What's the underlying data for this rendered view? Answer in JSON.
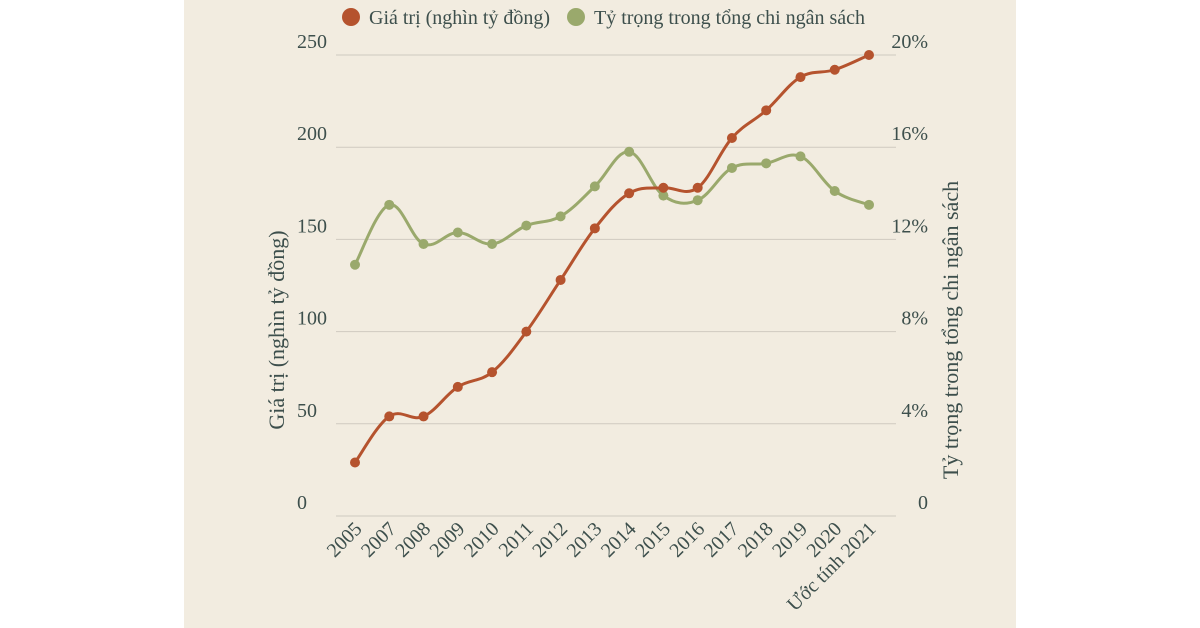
{
  "chart_data": {
    "type": "line",
    "categories": [
      "2005",
      "2007",
      "2008",
      "2009",
      "2010",
      "2011",
      "2012",
      "2013",
      "2014",
      "2015",
      "2016",
      "2017",
      "2018",
      "2019",
      "2020",
      "Ước tính 2021"
    ],
    "series": [
      {
        "name": "Giá trị (nghìn tỷ đồng)",
        "axis": "left",
        "color": "#b5532e",
        "values": [
          29,
          54,
          54,
          70,
          78,
          100,
          128,
          156,
          175,
          178,
          178,
          205,
          220,
          238,
          242,
          250
        ]
      },
      {
        "name": "Tỷ trọng trong tổng chi ngân sách",
        "axis": "right",
        "color": "#9aa96c",
        "values": [
          10.9,
          13.5,
          11.8,
          12.3,
          11.8,
          12.6,
          13.0,
          14.3,
          15.8,
          13.9,
          13.7,
          15.1,
          15.3,
          15.6,
          14.1,
          13.5
        ]
      }
    ],
    "left_axis": {
      "label": "Giá trị (nghìn tỷ đồng)",
      "min": 0,
      "max": 250,
      "ticks": [
        "0",
        "50",
        "100",
        "150",
        "200",
        "250"
      ]
    },
    "right_axis": {
      "label": "Tỷ trọng trong tổng chi ngân sách",
      "min": 0,
      "max": 20,
      "ticks": [
        "0",
        "4%",
        "8%",
        "12%",
        "16%",
        "20%"
      ]
    },
    "grid": true,
    "legend": "top"
  }
}
